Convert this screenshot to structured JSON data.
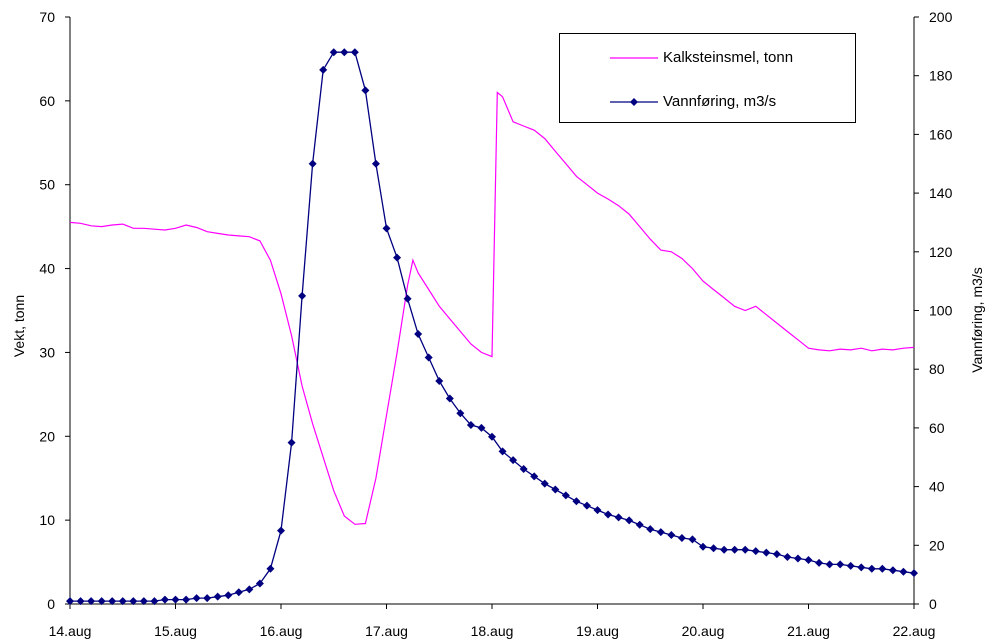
{
  "chart_data": {
    "type": "line",
    "xlabel": "",
    "ylabel_left": "Vekt, tonn",
    "ylabel_right": "Vannføring, m3/s",
    "x_ticks": [
      "14.aug",
      "15.aug",
      "16.aug",
      "17.aug",
      "18.aug",
      "19.aug",
      "20.aug",
      "21.aug",
      "22.aug"
    ],
    "xlim": [
      0,
      8
    ],
    "ylim_left": [
      0,
      70
    ],
    "ylim_right": [
      0,
      200
    ],
    "yticks_left": [
      0,
      10,
      20,
      30,
      40,
      50,
      60,
      70
    ],
    "yticks_right": [
      0,
      20,
      40,
      60,
      80,
      100,
      120,
      140,
      160,
      180,
      200
    ],
    "legend_position": "top-right",
    "series": [
      {
        "name": "Kalksteinsmel, tonn",
        "axis": "left",
        "color": "#ff00ff",
        "marker": "none",
        "x": [
          0,
          0.1,
          0.2,
          0.25,
          0.3,
          0.4,
          0.5,
          0.55,
          0.6,
          0.7,
          0.8,
          0.9,
          1.0,
          1.1,
          1.2,
          1.3,
          1.4,
          1.5,
          1.6,
          1.7,
          1.8,
          1.9,
          2.0,
          2.05,
          2.1,
          2.2,
          2.3,
          2.4,
          2.5,
          2.6,
          2.7,
          2.8,
          2.9,
          3.0,
          3.1,
          3.2,
          3.25,
          3.3,
          3.35,
          3.4,
          3.45,
          3.5,
          3.6,
          3.7,
          3.8,
          3.9,
          3.95,
          3.98,
          4.0,
          4.05,
          4.1,
          4.15,
          4.2,
          4.25,
          4.3,
          4.4,
          4.5,
          4.6,
          4.7,
          4.8,
          4.9,
          5.0,
          5.1,
          5.2,
          5.3,
          5.4,
          5.5,
          5.6,
          5.7,
          5.8,
          5.9,
          6.0,
          6.05,
          6.1,
          6.2,
          6.3,
          6.4,
          6.5,
          6.6,
          6.7,
          6.8,
          6.9,
          7.0,
          7.05,
          7.1,
          7.2,
          7.3,
          7.4,
          7.5,
          7.6,
          7.7,
          7.8,
          7.85,
          7.9,
          7.95,
          8.0
        ],
        "values": [
          45.5,
          45.7,
          45.3,
          44.9,
          45.1,
          45.2,
          45.4,
          45.1,
          44.8,
          44.8,
          44.7,
          44.7,
          44.8,
          45.2,
          45.0,
          44.5,
          44.3,
          44.1,
          44.0,
          43.9,
          43.6,
          42.5,
          40.5,
          38.5,
          36.0,
          31.0,
          26.5,
          22.0,
          17.5,
          14.0,
          11.0,
          9.4,
          9.6,
          17.0,
          25.5,
          33.0,
          41.0,
          39.0,
          37.0,
          35.5,
          34.0,
          32.8,
          31.5,
          30.5,
          29.5,
          29.0,
          61.0,
          61.0,
          60.5,
          59.5,
          57.5,
          57.0,
          57.0,
          57.0,
          56.5,
          55.5,
          54.0,
          52.5,
          51.0,
          50.0,
          48.5,
          48.2,
          47.5,
          47.0,
          46.0,
          44.5,
          42.5,
          42.2,
          42.0,
          41.5,
          40.5,
          40.0,
          39.0,
          38.0,
          36.5,
          35.5,
          35.0,
          35.5,
          35.0,
          34.5,
          33.5,
          32.5,
          31.5,
          30.5,
          30.2,
          30.3,
          30.5,
          30.3,
          30.4,
          30.2,
          30.3,
          30.4,
          30.2,
          30.5,
          30.4,
          30.6
        ],
        "x_fixed": [
          0,
          0.1,
          0.2,
          0.3,
          0.4,
          0.5,
          0.6,
          0.7,
          0.8,
          0.9,
          1.0,
          1.1,
          1.2,
          1.3,
          1.4,
          1.5,
          1.6,
          1.7,
          1.8,
          1.9,
          2.0,
          2.1,
          2.2,
          2.3,
          2.4,
          2.5,
          2.6,
          2.7,
          2.8,
          2.9,
          3.0,
          3.1,
          3.2,
          3.25,
          3.3,
          3.4,
          3.5,
          3.6,
          3.7,
          3.8,
          3.9,
          4.0,
          4.05,
          4.1,
          4.2,
          4.3,
          4.4,
          4.5,
          4.6,
          4.7,
          4.8,
          4.9,
          5.0,
          5.1,
          5.2,
          5.3,
          5.4,
          5.5,
          5.6,
          5.7,
          5.8,
          5.9,
          6.0,
          6.1,
          6.2,
          6.3,
          6.4,
          6.5,
          6.6,
          6.7,
          6.8,
          6.9,
          7.0,
          7.1,
          7.2,
          7.3,
          7.4,
          7.5,
          7.6,
          7.7,
          7.8,
          7.9,
          8.0
        ],
        "values_fixed": [
          45.5,
          45.4,
          45.1,
          45.0,
          45.2,
          45.3,
          44.8,
          44.8,
          44.7,
          44.6,
          44.8,
          45.2,
          44.9,
          44.4,
          44.2,
          44.0,
          43.9,
          43.8,
          43.3,
          41.0,
          37.0,
          32.0,
          26.0,
          21.5,
          17.5,
          13.5,
          10.5,
          9.5,
          9.6,
          15.0,
          22.5,
          30.0,
          38.0,
          41.0,
          39.5,
          37.5,
          35.5,
          34.0,
          32.5,
          31.0,
          30.0,
          29.5,
          61.0,
          60.5,
          57.5,
          57.0,
          56.5,
          55.5,
          54.0,
          52.5,
          51.0,
          50.0,
          49.0,
          48.3,
          47.5,
          46.5,
          45.0,
          43.5,
          42.2,
          42.0,
          41.2,
          40.0,
          38.5,
          37.5,
          36.5,
          35.5,
          35.0,
          35.5,
          34.5,
          33.5,
          32.5,
          31.5,
          30.5,
          30.3,
          30.2,
          30.4,
          30.3,
          30.5,
          30.2,
          30.4,
          30.3,
          30.5,
          30.6
        ]
      },
      {
        "name": "Vannføring, m3/s",
        "axis": "right",
        "color": "#000080",
        "marker": "diamond",
        "x": [
          0,
          0.1,
          0.2,
          0.3,
          0.4,
          0.5,
          0.6,
          0.7,
          0.8,
          0.9,
          1.0,
          1.1,
          1.2,
          1.3,
          1.4,
          1.5,
          1.6,
          1.7,
          1.8,
          1.9,
          2.0,
          2.1,
          2.2,
          2.3,
          2.4,
          2.5,
          2.6,
          2.7,
          2.8,
          2.9,
          3.0,
          3.1,
          3.2,
          3.3,
          3.4,
          3.5,
          3.6,
          3.7,
          3.8,
          3.9,
          4.0,
          4.1,
          4.2,
          4.3,
          4.4,
          4.5,
          4.6,
          4.7,
          4.8,
          4.9,
          5.0,
          5.1,
          5.2,
          5.3,
          5.4,
          5.5,
          5.6,
          5.7,
          5.8,
          5.9,
          6.0,
          6.1,
          6.2,
          6.3,
          6.4,
          6.5,
          6.6,
          6.7,
          6.8,
          6.9,
          7.0,
          7.1,
          7.2,
          7.3,
          7.4,
          7.5,
          7.6,
          7.7,
          7.8,
          7.9,
          8.0
        ],
        "values": [
          1,
          1,
          1,
          1,
          1,
          1,
          1,
          1,
          1,
          1.5,
          1.5,
          1.5,
          2,
          2,
          2.5,
          3,
          4,
          5,
          7,
          12,
          25,
          55,
          105,
          150,
          182,
          188,
          188,
          188,
          175,
          150,
          128,
          118,
          104,
          92,
          84,
          76,
          70,
          65,
          61,
          60,
          57,
          52,
          49,
          46,
          43.5,
          41,
          39,
          37,
          35,
          33.5,
          32,
          30.5,
          29.5,
          28.5,
          27,
          25.5,
          24.5,
          23.5,
          22.5,
          22,
          19.5,
          19,
          18.5,
          18.5,
          18.5,
          18,
          17.5,
          17,
          16,
          15.5,
          15,
          14,
          13.5,
          13.5,
          13,
          12.5,
          12,
          12,
          11.5,
          11,
          10.5
        ]
      }
    ]
  }
}
